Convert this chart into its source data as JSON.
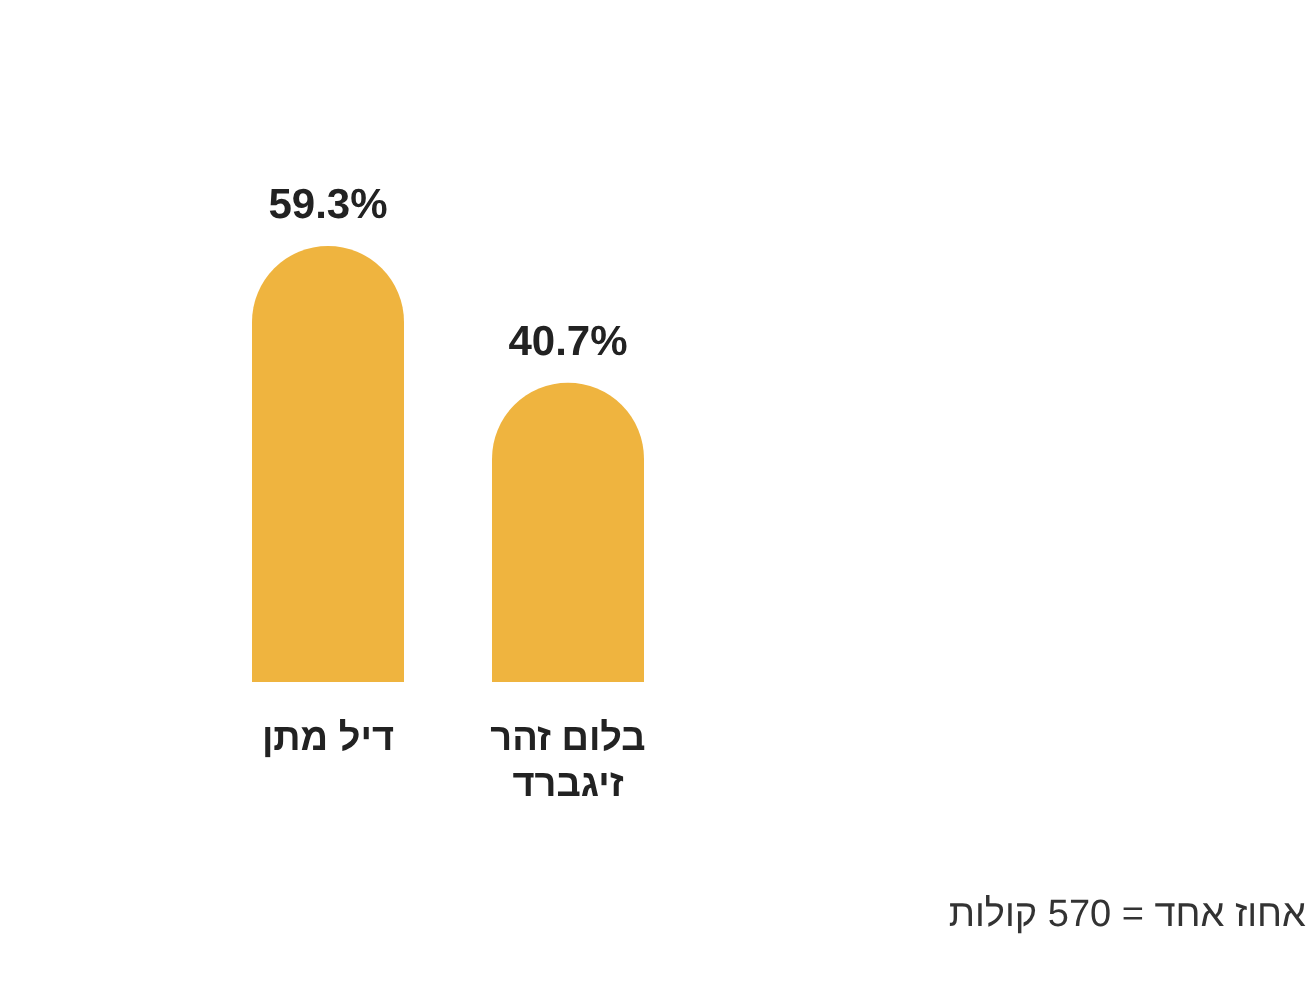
{
  "chart_data": {
    "type": "bar",
    "categories": [
      "דיל מתן",
      "בלום זהר זיגברד"
    ],
    "values": [
      59.3,
      40.7
    ],
    "value_labels": [
      "59.3%",
      "40.7%"
    ],
    "color": "#efb43f",
    "annotations": [
      "אחוז אחד = 570 קולות"
    ]
  }
}
